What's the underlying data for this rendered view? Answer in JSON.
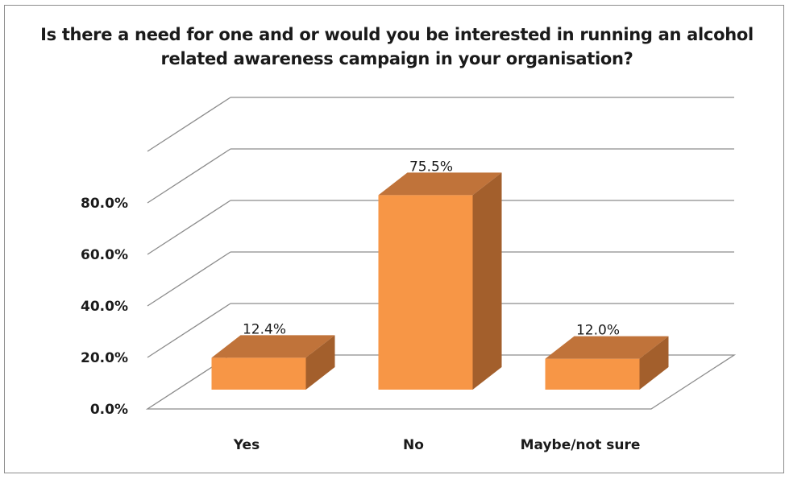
{
  "chart_data": {
    "type": "bar",
    "title": "Is there a need for one and or would you be interested in running an alcohol related awareness campaign in your organisation?",
    "categories": [
      "Yes",
      "No",
      "Maybe/not sure"
    ],
    "values": [
      12.4,
      75.5,
      12.0
    ],
    "data_labels": [
      "12.4%",
      "75.5%",
      "12.0%"
    ],
    "y_ticks": [
      "0.0%",
      "20.0%",
      "40.0%",
      "60.0%",
      "80.0%"
    ],
    "ylim": [
      0,
      100
    ],
    "xlabel": "",
    "ylabel": "",
    "grid": true,
    "legend": "none",
    "style": "3d-column",
    "colors": {
      "bar_front": "#f79646",
      "bar_top": "#c0733a",
      "bar_side": "#a35f2c",
      "grid": "#8c8c8c"
    }
  }
}
